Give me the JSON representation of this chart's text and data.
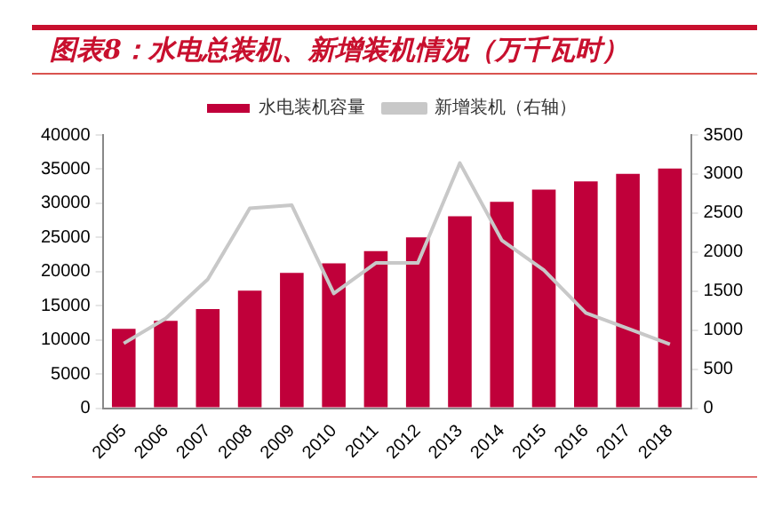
{
  "chart_data": {
    "type": "bar",
    "title": "图表8：水电总装机、新增装机情况（万千瓦时）",
    "categories": [
      "2005",
      "2006",
      "2007",
      "2008",
      "2009",
      "2010",
      "2011",
      "2012",
      "2013",
      "2014",
      "2015",
      "2016",
      "2017",
      "2018"
    ],
    "series": [
      {
        "name": "水电装机容量",
        "color": "#c0003a",
        "values": [
          11600,
          12800,
          14500,
          17200,
          19800,
          21200,
          23000,
          25000,
          28100,
          30200,
          32000,
          33200,
          34300,
          35100
        ]
      },
      {
        "name": "新增装机（右轴）",
        "type": "line",
        "axis": "y2",
        "color": "#c8c8c8",
        "values": [
          830,
          1150,
          1650,
          2560,
          2600,
          1470,
          1860,
          1860,
          3140,
          2150,
          1770,
          1220,
          1020,
          820
        ]
      }
    ],
    "ylim": [
      0,
      40000
    ],
    "yticks": [
      0,
      5000,
      10000,
      15000,
      20000,
      25000,
      30000,
      35000,
      40000
    ],
    "y2lim": [
      0,
      3500
    ],
    "y2ticks": [
      0,
      500,
      1000,
      1500,
      2000,
      2500,
      3000,
      3500
    ],
    "grid": false,
    "legend": "top",
    "marker": "none",
    "line_style": "solid"
  }
}
